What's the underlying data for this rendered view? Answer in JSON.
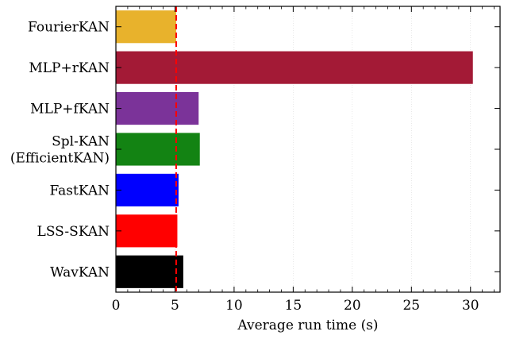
{
  "chart_data": {
    "type": "bar",
    "orientation": "horizontal",
    "title": "",
    "xlabel": "Average run time (s)",
    "ylabel": "",
    "xlim": [
      0,
      32.5
    ],
    "xticks": [
      0,
      5,
      10,
      15,
      20,
      25,
      30
    ],
    "grid": "vertical, faint",
    "legend": "none",
    "categories": [
      [
        "FourierKAN"
      ],
      [
        "MLP+rKAN"
      ],
      [
        "MLP+fKAN"
      ],
      [
        "Spl-KAN",
        "(EfficientKAN)"
      ],
      [
        "FastKAN"
      ],
      [
        "LSS-SKAN"
      ],
      [
        "WavKAN"
      ]
    ],
    "values": [
      5.1,
      30.2,
      7.0,
      7.1,
      5.3,
      5.2,
      5.7
    ],
    "colors": [
      "#e8b22c",
      "#a31a36",
      "#7b3399",
      "#138313",
      "#0000ff",
      "#ff0000",
      "#000000"
    ],
    "reference_line": {
      "x": 5.1,
      "color": "#ff0000",
      "style": "dashed"
    }
  }
}
